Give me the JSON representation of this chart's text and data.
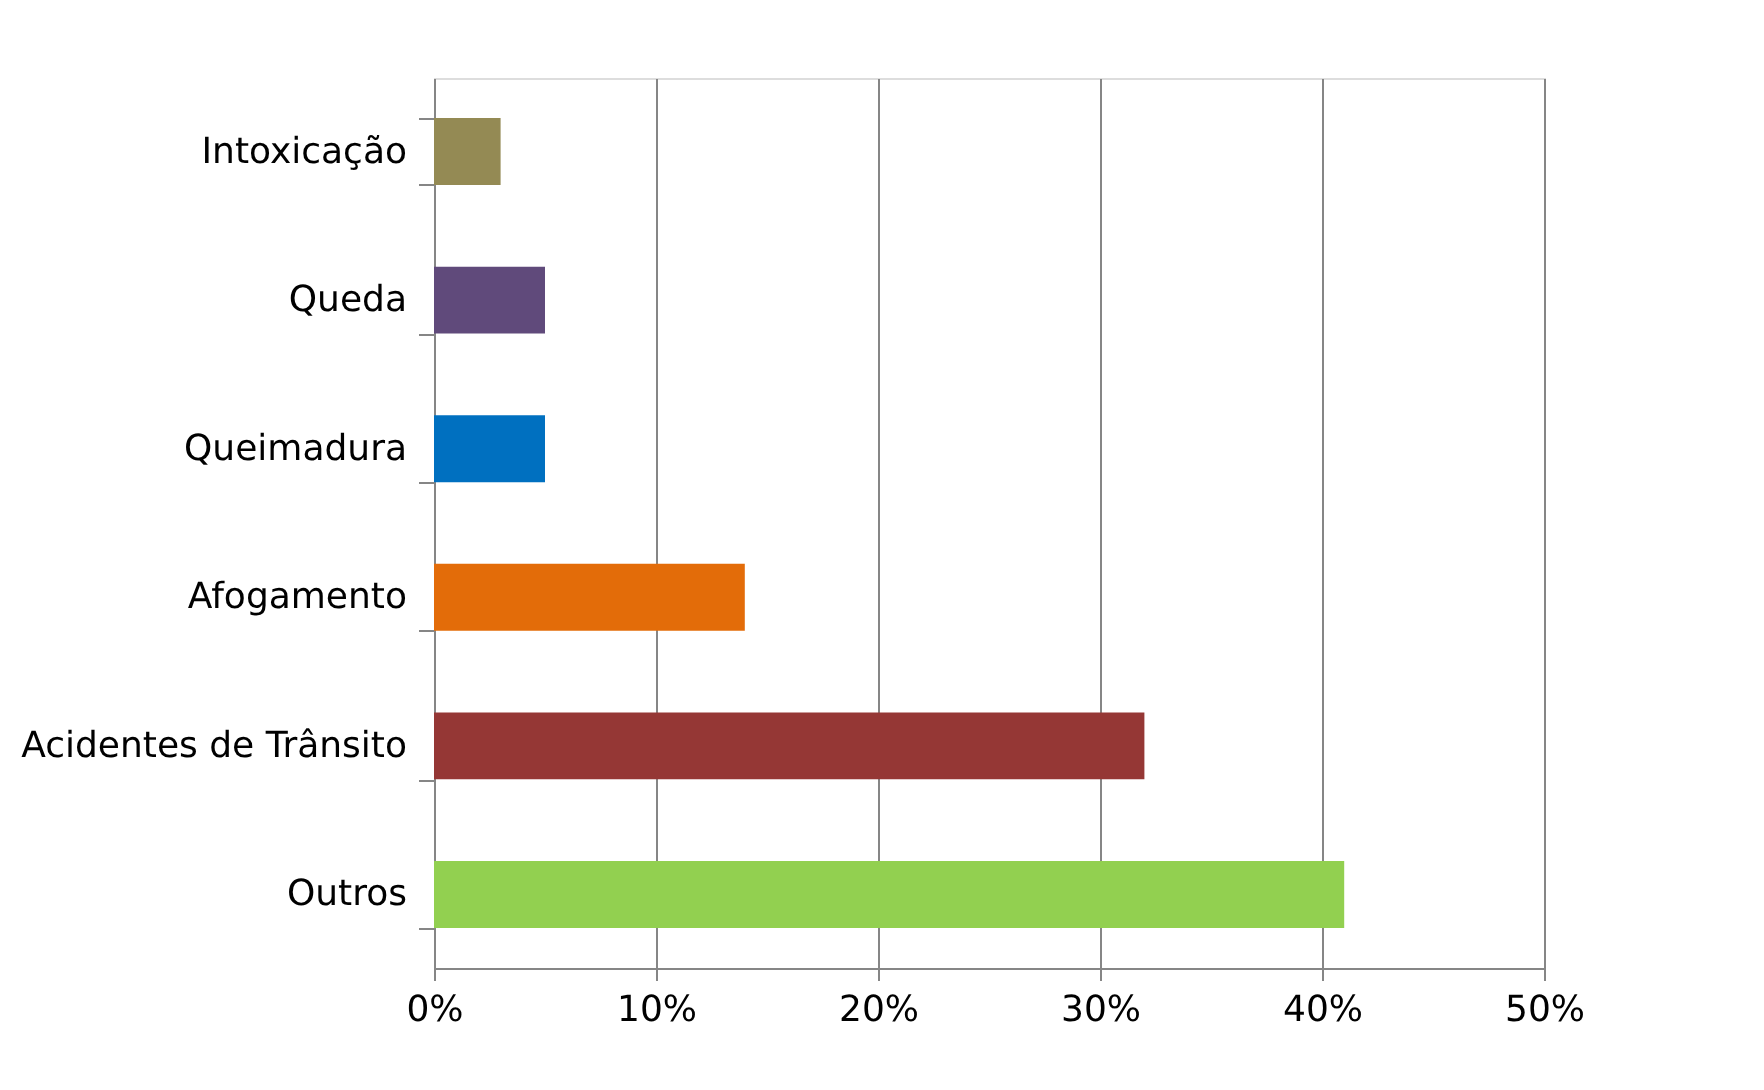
{
  "chart_data": {
    "type": "bar",
    "orientation": "horizontal",
    "categories": [
      "Intoxicação",
      "Queda",
      "Queimadura",
      "Afogamento",
      "Acidentes de Trânsito",
      "Outros"
    ],
    "values": [
      3,
      5,
      5,
      14,
      32,
      41
    ],
    "colors": [
      "#948a54",
      "#604a7b",
      "#0070c0",
      "#e36c09",
      "#953735",
      "#92d050"
    ],
    "xlim": [
      0,
      50
    ],
    "xticks": [
      {
        "value": 0,
        "label": "0%"
      },
      {
        "value": 10,
        "label": "10%"
      },
      {
        "value": 20,
        "label": "20%"
      },
      {
        "value": 30,
        "label": "30%"
      },
      {
        "value": 40,
        "label": "40%"
      },
      {
        "value": 50,
        "label": "50%"
      }
    ],
    "grid": "x"
  }
}
